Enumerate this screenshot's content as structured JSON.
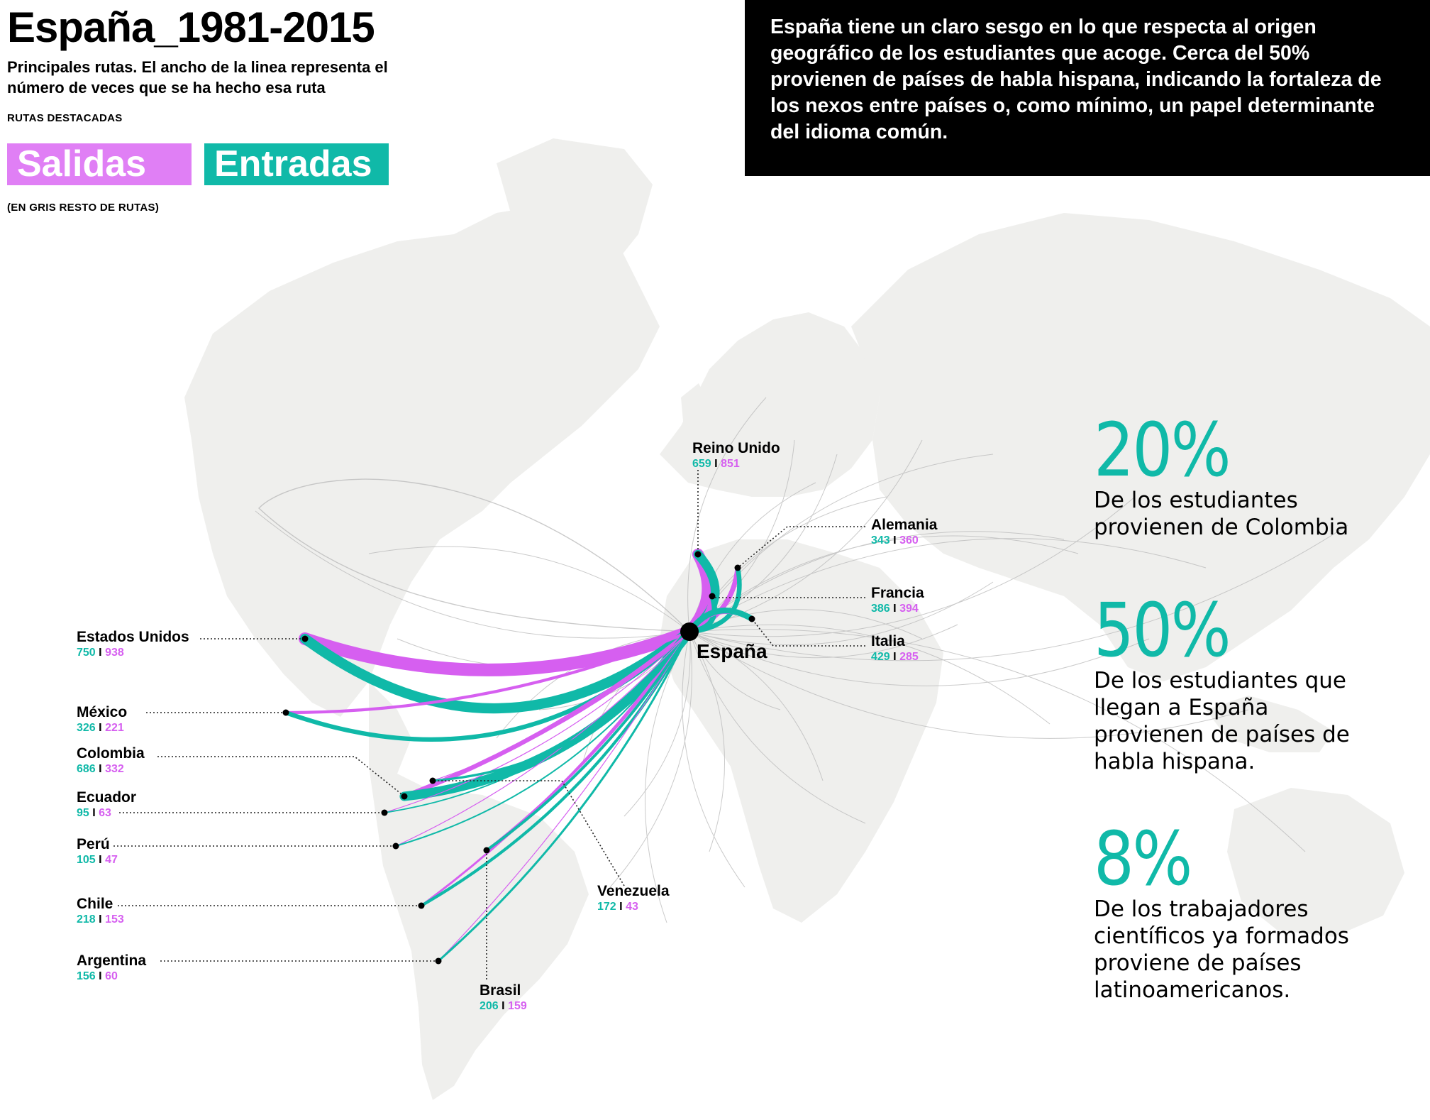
{
  "title": "España_1981-2015",
  "subtitle": "Principales rutas. El ancho de la linea representa el número de veces que se ha hecho esa ruta",
  "legend": {
    "heading": "RUTAS DESTACADAS",
    "salidas": "Salidas",
    "entradas": "Entradas",
    "note": "(EN GRIS RESTO DE RUTAS)"
  },
  "intro_text": "España tiene un claro sesgo en lo que respecta al origen geográfico de los estudiantes que acoge. Cerca del 50% provienen de países de habla hispana, indicando la fortaleza de los nexos entre países o, como mínimo, un papel determinante del idioma común.",
  "hub_label": "España",
  "colors": {
    "entradas": "#10b9a8",
    "salidas": "#d65ff0",
    "other_routes": "#b8b8b8",
    "land": "#efefed"
  },
  "countries": [
    {
      "name": "Reino Unido",
      "entradas": "659",
      "salidas": "851"
    },
    {
      "name": "Alemania",
      "entradas": "343",
      "salidas": "360"
    },
    {
      "name": "Francia",
      "entradas": "386",
      "salidas": "394"
    },
    {
      "name": "Italia",
      "entradas": "429",
      "salidas": "285"
    },
    {
      "name": "Estados Unidos",
      "entradas": "750",
      "salidas": "938"
    },
    {
      "name": "México",
      "entradas": "326",
      "salidas": "221"
    },
    {
      "name": "Colombia",
      "entradas": "686",
      "salidas": "332"
    },
    {
      "name": "Ecuador",
      "entradas": "95",
      "salidas": "63"
    },
    {
      "name": "Perú",
      "entradas": "105",
      "salidas": "47"
    },
    {
      "name": "Chile",
      "entradas": "218",
      "salidas": "153"
    },
    {
      "name": "Argentina",
      "entradas": "156",
      "salidas": "60"
    },
    {
      "name": "Venezuela",
      "entradas": "172",
      "salidas": "43"
    },
    {
      "name": "Brasil",
      "entradas": "206",
      "salidas": "159"
    }
  ],
  "separator": "I",
  "stats": [
    {
      "value": "20%",
      "text": "De los estudiantes provienen de Colombia"
    },
    {
      "value": "50%",
      "text": "De los estudiantes que llegan a España provienen de países de habla hispana."
    },
    {
      "value": "8%",
      "text": "De los trabajadores científicos ya formados proviene de países latinoamericanos."
    }
  ]
}
